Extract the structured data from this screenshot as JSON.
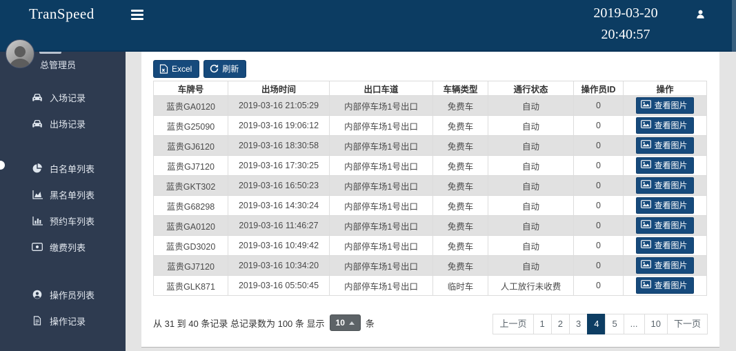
{
  "header": {
    "logo": "TranSpeed",
    "date": "2019-03-20",
    "time": "20:40:57"
  },
  "sidebar": {
    "role": "总管理员",
    "items": [
      {
        "id": "entry-records",
        "icon": "car-icon",
        "label": "入场记录"
      },
      {
        "id": "exit-records",
        "icon": "car-icon",
        "label": "出场记录"
      },
      {
        "id": "whitelist",
        "icon": "pie-chart-icon",
        "label": "白名单列表"
      },
      {
        "id": "blacklist",
        "icon": "area-chart-icon",
        "label": "黑名单列表"
      },
      {
        "id": "reserved-vehicles",
        "icon": "bar-chart-icon",
        "label": "预约车列表"
      },
      {
        "id": "payments",
        "icon": "money-icon",
        "label": "缴费列表"
      },
      {
        "id": "operators",
        "icon": "operator-icon",
        "label": "操作员列表"
      },
      {
        "id": "operation-log",
        "icon": "document-icon",
        "label": "操作记录"
      }
    ]
  },
  "toolbar": {
    "excel_label": "Excel",
    "refresh_label": "刷新"
  },
  "table": {
    "columns": [
      "车牌号",
      "出场时间",
      "出口车道",
      "车辆类型",
      "通行状态",
      "操作员ID",
      "操作"
    ],
    "action_label": "查看图片",
    "rows": [
      {
        "plate": "蓝贵GA0120",
        "exit_time": "2019-03-16 21:05:29",
        "exit_lane": "内部停车场1号出口",
        "vehicle_type": "免费车",
        "pass_status": "自动",
        "operator_id": "0"
      },
      {
        "plate": "蓝贵G25090",
        "exit_time": "2019-03-16 19:06:12",
        "exit_lane": "内部停车场1号出口",
        "vehicle_type": "免费车",
        "pass_status": "自动",
        "operator_id": "0"
      },
      {
        "plate": "蓝贵GJ6120",
        "exit_time": "2019-03-16 18:30:58",
        "exit_lane": "内部停车场1号出口",
        "vehicle_type": "免费车",
        "pass_status": "自动",
        "operator_id": "0"
      },
      {
        "plate": "蓝贵GJ7120",
        "exit_time": "2019-03-16 17:30:25",
        "exit_lane": "内部停车场1号出口",
        "vehicle_type": "免费车",
        "pass_status": "自动",
        "operator_id": "0"
      },
      {
        "plate": "蓝贵GKT302",
        "exit_time": "2019-03-16 16:50:23",
        "exit_lane": "内部停车场1号出口",
        "vehicle_type": "免费车",
        "pass_status": "自动",
        "operator_id": "0"
      },
      {
        "plate": "蓝贵G68298",
        "exit_time": "2019-03-16 14:30:24",
        "exit_lane": "内部停车场1号出口",
        "vehicle_type": "免费车",
        "pass_status": "自动",
        "operator_id": "0"
      },
      {
        "plate": "蓝贵GA0120",
        "exit_time": "2019-03-16 11:46:27",
        "exit_lane": "内部停车场1号出口",
        "vehicle_type": "免费车",
        "pass_status": "自动",
        "operator_id": "0"
      },
      {
        "plate": "蓝贵GD3020",
        "exit_time": "2019-03-16 10:49:42",
        "exit_lane": "内部停车场1号出口",
        "vehicle_type": "免费车",
        "pass_status": "自动",
        "operator_id": "0"
      },
      {
        "plate": "蓝贵GJ7120",
        "exit_time": "2019-03-16 10:34:20",
        "exit_lane": "内部停车场1号出口",
        "vehicle_type": "免费车",
        "pass_status": "自动",
        "operator_id": "0"
      },
      {
        "plate": "蓝贵GLK871",
        "exit_time": "2019-03-16 05:50:45",
        "exit_lane": "内部停车场1号出口",
        "vehicle_type": "临时车",
        "pass_status": "人工放行未收费",
        "operator_id": "0"
      }
    ]
  },
  "pagination": {
    "info_prefix": "从 31 到 40 条记录 总记录数为 100 条 显示",
    "page_size": "10",
    "info_suffix": "条",
    "active_page": "4",
    "pages": [
      {
        "label": "上一页",
        "type": "prev"
      },
      {
        "label": "1"
      },
      {
        "label": "2"
      },
      {
        "label": "3"
      },
      {
        "label": "4",
        "active": true
      },
      {
        "label": "5"
      },
      {
        "label": "...",
        "type": "ellipsis"
      },
      {
        "label": "10"
      },
      {
        "label": "下一页",
        "type": "next"
      }
    ]
  },
  "colors": {
    "header": "#0c3c62",
    "sidebar": "#2e3b50",
    "accent": "#164a7c",
    "stripe": "#e1e1e1"
  }
}
